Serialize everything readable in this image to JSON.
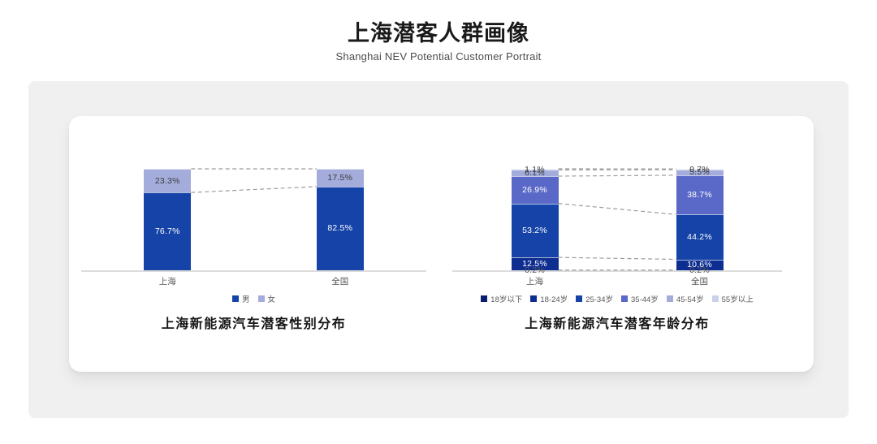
{
  "header": {
    "title": "上海潜客人群画像",
    "subtitle": "Shanghai NEV Potential Customer Portrait"
  },
  "palette": {
    "axis_line": "#dcdcdc",
    "dash_line": "#9c9c9c",
    "panel_bg": "#f0f0f1",
    "card_bg": "#ffffff"
  },
  "chart_data": [
    {
      "type": "bar",
      "stacked": true,
      "orientation": "vertical",
      "categories": [
        "上海",
        "全国"
      ],
      "series": [
        {
          "name": "男",
          "values": [
            76.7,
            82.5
          ],
          "color": "#1543a8",
          "label_color": "#ffffff"
        },
        {
          "name": "女",
          "values": [
            23.3,
            17.5
          ],
          "color": "#a3acdb",
          "label_color": "#3d3d3d"
        }
      ],
      "value_suffix": "%",
      "ylim": [
        0,
        100
      ],
      "grid": false,
      "legend_position": "bottom",
      "connectors": "dashed",
      "caption": "上海新能源汽车潜客性别分布"
    },
    {
      "type": "bar",
      "stacked": true,
      "orientation": "vertical",
      "categories": [
        "上海",
        "全国"
      ],
      "series": [
        {
          "name": "18岁以下",
          "values": [
            0.2,
            0.2
          ],
          "color": "#0a1e6e",
          "label_color": "#595959"
        },
        {
          "name": "18-24岁",
          "values": [
            12.5,
            10.6
          ],
          "color": "#0d2d91",
          "label_color": "#ffffff"
        },
        {
          "name": "25-34岁",
          "values": [
            53.2,
            44.2
          ],
          "color": "#1543a8",
          "label_color": "#ffffff"
        },
        {
          "name": "35-44岁",
          "values": [
            26.9,
            38.7
          ],
          "color": "#5a68c8",
          "label_color": "#ffffff"
        },
        {
          "name": "45-54岁",
          "values": [
            6.1,
            5.5
          ],
          "color": "#a3acdb",
          "label_color": "#3d3d3d"
        },
        {
          "name": "55岁以上",
          "values": [
            1.1,
            0.7
          ],
          "color": "#cbd0ea",
          "label_color": "#3d3d3d"
        }
      ],
      "value_suffix": "%",
      "ylim": [
        0,
        100
      ],
      "grid": false,
      "legend_position": "bottom",
      "connectors": "dashed",
      "caption": "上海新能源汽车潜客年龄分布"
    }
  ]
}
